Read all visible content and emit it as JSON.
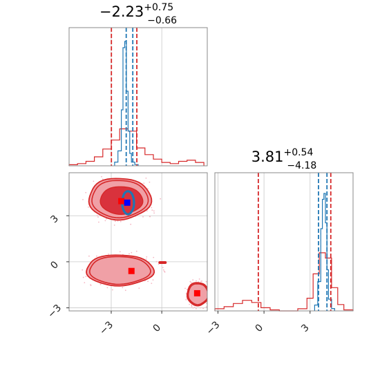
{
  "colors": {
    "truth_blue": "#1f77b4",
    "posterior_red": "#d62728",
    "fill_light": "#f0a0a6",
    "fill_dark": "#d9323c",
    "scatter_pink": "#f4b6c2",
    "grid": "#c8c8c8",
    "axes": "#888888"
  },
  "chart_data": [
    {
      "type": "area",
      "panel": "top-left marginal histogram",
      "title": {
        "value": "−2.23",
        "sup": "+0.75",
        "sub": "−0.66"
      },
      "xlim": [
        -5.5,
        2.7
      ],
      "grid": true,
      "series": [
        {
          "color": "red",
          "bins": [
            -5.5,
            -5.0,
            -4.5,
            -4.0,
            -3.5,
            -3.0,
            -2.5,
            -2.0,
            -1.5,
            -1.0,
            -0.5,
            0.0,
            0.5,
            1.0,
            1.5,
            2.0,
            2.5
          ],
          "counts": [
            0.01,
            0.02,
            0.04,
            0.08,
            0.15,
            0.23,
            0.33,
            0.31,
            0.16,
            0.1,
            0.06,
            0.03,
            0.02,
            0.04,
            0.05,
            0.03
          ]
        },
        {
          "color": "blue",
          "bins": [
            -2.8,
            -2.6,
            -2.4,
            -2.3,
            -2.2,
            -2.1,
            -2.0,
            -1.9,
            -1.8,
            -1.6,
            -1.4
          ],
          "counts": [
            0.03,
            0.12,
            0.45,
            0.95,
            1.0,
            0.6,
            0.28,
            0.1,
            0.03,
            0.01
          ]
        }
      ],
      "vlines": [
        {
          "color": "red",
          "x": -2.99
        },
        {
          "color": "red",
          "x": -1.48
        },
        {
          "color": "blue",
          "x": -2.11
        },
        {
          "color": "blue",
          "x": -1.72
        }
      ]
    },
    {
      "type": "scatter",
      "panel": "bottom-left 2D contour",
      "xlim": [
        -5.5,
        2.7
      ],
      "ylim": [
        -3.2,
        5.8
      ],
      "xticks": [
        "−3",
        "0"
      ],
      "yticks": [
        "−3",
        "0",
        "3"
      ],
      "grid": true,
      "clusters": [
        {
          "center": [
            -2.5,
            4.1
          ],
          "rx": 1.85,
          "ry": 1.35
        },
        {
          "center": [
            -2.5,
            -0.55
          ],
          "rx": 2.0,
          "ry": 1.0
        },
        {
          "center": [
            2.15,
            -2.1
          ],
          "rx": 0.65,
          "ry": 0.75
        }
      ],
      "markers": [
        {
          "color": "red",
          "x": -2.4,
          "y": 3.95
        },
        {
          "color": "blue",
          "x": -2.05,
          "y": 3.85
        },
        {
          "color": "red",
          "x": -1.8,
          "y": -0.6
        },
        {
          "color": "red",
          "x": 2.1,
          "y": -2.05
        }
      ],
      "blue_contour": {
        "center": [
          -2.0,
          3.85
        ],
        "rx": 0.35,
        "ry": 0.75
      }
    },
    {
      "type": "area",
      "panel": "bottom-right marginal histogram",
      "title": {
        "value": "3.81",
        "sup": "+0.54",
        "sub": "−4.18"
      },
      "xlim": [
        -3.2,
        5.8
      ],
      "xticks": [
        "−3",
        "0",
        "3"
      ],
      "grid": true,
      "series": [
        {
          "color": "red",
          "bins": [
            -3.2,
            -2.6,
            -2.0,
            -1.4,
            -0.8,
            -0.2,
            0.4,
            1.0,
            1.6,
            2.2,
            2.8,
            3.2,
            3.6,
            4.0,
            4.4,
            4.8,
            5.2,
            5.8
          ],
          "counts": [
            0.02,
            0.04,
            0.07,
            0.1,
            0.08,
            0.03,
            0.01,
            0.0,
            0.0,
            0.02,
            0.12,
            0.35,
            0.55,
            0.5,
            0.22,
            0.06,
            0.01
          ]
        },
        {
          "color": "blue",
          "bins": [
            3.3,
            3.5,
            3.7,
            3.8,
            3.9,
            4.0,
            4.1,
            4.2,
            4.4,
            4.6
          ],
          "counts": [
            0.05,
            0.25,
            0.7,
            0.95,
            1.0,
            0.75,
            0.35,
            0.1,
            0.02
          ]
        }
      ],
      "vlines": [
        {
          "color": "red",
          "x": -0.37
        },
        {
          "color": "red",
          "x": 4.35
        },
        {
          "color": "blue",
          "x": 3.55
        },
        {
          "color": "blue",
          "x": 4.1
        }
      ]
    }
  ]
}
